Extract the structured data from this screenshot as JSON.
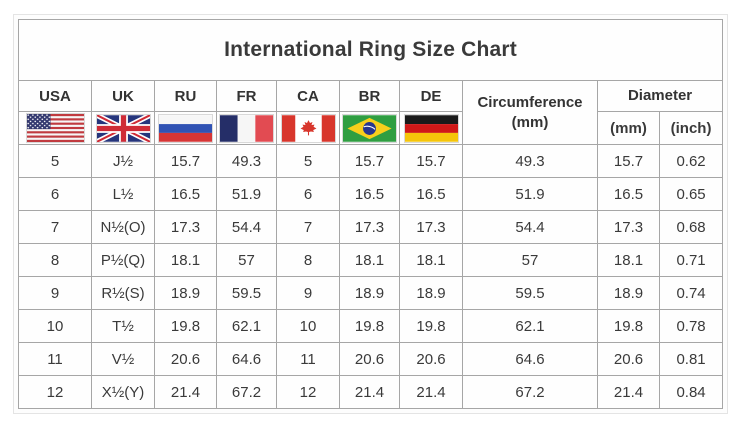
{
  "title": "International Ring Size Chart",
  "table": {
    "country_columns": [
      {
        "code": "USA",
        "flag_icon": "usa-flag-icon"
      },
      {
        "code": "UK",
        "flag_icon": "uk-flag-icon"
      },
      {
        "code": "RU",
        "flag_icon": "ru-flag-icon"
      },
      {
        "code": "FR",
        "flag_icon": "fr-flag-icon"
      },
      {
        "code": "CA",
        "flag_icon": "ca-flag-icon"
      },
      {
        "code": "BR",
        "flag_icon": "br-flag-icon"
      },
      {
        "code": "DE",
        "flag_icon": "de-flag-icon"
      }
    ],
    "circumference_header": {
      "label": "Circumference",
      "unit": "(mm)"
    },
    "diameter_header": {
      "label": "Diameter",
      "sub_mm": "(mm)",
      "sub_inch": "(inch)"
    }
  },
  "chart_data": {
    "type": "table",
    "title": "International Ring Size Chart",
    "columns": [
      "USA",
      "UK",
      "RU",
      "FR",
      "CA",
      "BR",
      "DE",
      "Circumference (mm)",
      "Diameter (mm)",
      "Diameter (inch)"
    ],
    "rows": [
      [
        "5",
        "J½",
        "15.7",
        "49.3",
        "5",
        "15.7",
        "15.7",
        "49.3",
        "15.7",
        "0.62"
      ],
      [
        "6",
        "L½",
        "16.5",
        "51.9",
        "6",
        "16.5",
        "16.5",
        "51.9",
        "16.5",
        "0.65"
      ],
      [
        "7",
        "N½(O)",
        "17.3",
        "54.4",
        "7",
        "17.3",
        "17.3",
        "54.4",
        "17.3",
        "0.68"
      ],
      [
        "8",
        "P½(Q)",
        "18.1",
        "57",
        "8",
        "18.1",
        "18.1",
        "57",
        "18.1",
        "0.71"
      ],
      [
        "9",
        "R½(S)",
        "18.9",
        "59.5",
        "9",
        "18.9",
        "18.9",
        "59.5",
        "18.9",
        "0.74"
      ],
      [
        "10",
        "T½",
        "19.8",
        "62.1",
        "10",
        "19.8",
        "19.8",
        "62.1",
        "19.8",
        "0.78"
      ],
      [
        "11",
        "V½",
        "20.6",
        "64.6",
        "11",
        "20.6",
        "20.6",
        "64.6",
        "20.6",
        "0.81"
      ],
      [
        "12",
        "X½(Y)",
        "21.4",
        "67.2",
        "12",
        "21.4",
        "21.4",
        "67.2",
        "21.4",
        "0.84"
      ]
    ]
  },
  "colors": {
    "grid_border": "#a6a6a6",
    "outer_border": "#8e8e8e",
    "text": "#3a3a3a",
    "title_text": "#2b2b2b"
  }
}
